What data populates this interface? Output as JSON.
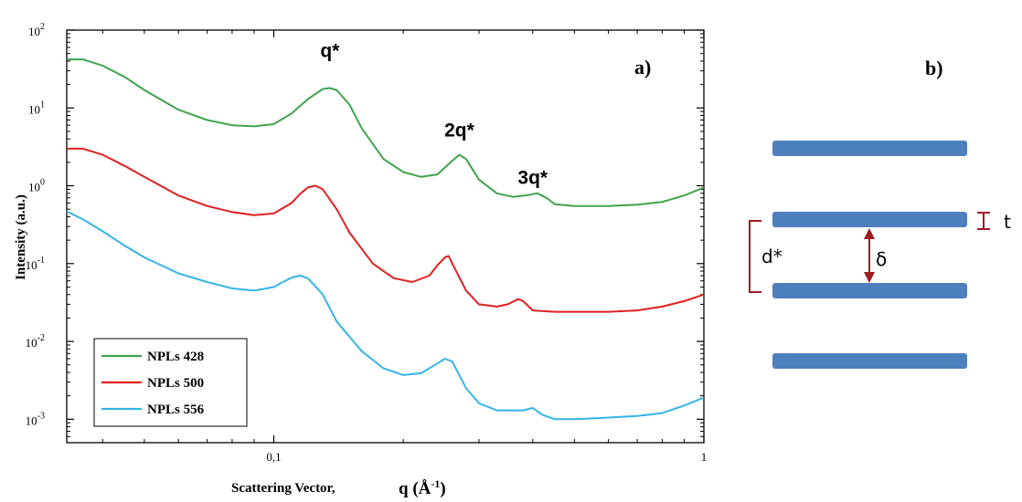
{
  "chart_data": {
    "type": "line",
    "panel_label": "a)",
    "xlabel_main": "Scattering Vector,",
    "xlabel_q": "q (Å",
    "xlabel_exp": "-1",
    "xlabel_close": ")",
    "ylabel": "Intensity (a.u.)",
    "x_scale": "log",
    "y_scale": "log",
    "xlim": [
      0.033,
      1.0
    ],
    "ylim": [
      0.0005,
      100
    ],
    "x_ticks": [
      {
        "value": 0.1,
        "label": "0,1"
      },
      {
        "value": 1,
        "label": "1"
      }
    ],
    "y_ticks": [
      {
        "value": 100,
        "base": "10",
        "exp": "2"
      },
      {
        "value": 10,
        "base": "10",
        "exp": "1"
      },
      {
        "value": 1,
        "base": "10",
        "exp": "0"
      },
      {
        "value": 0.1,
        "base": "10",
        "exp": "-1"
      },
      {
        "value": 0.01,
        "base": "10",
        "exp": "-2"
      },
      {
        "value": 0.001,
        "base": "10",
        "exp": "-3"
      }
    ],
    "legend_position": "bottom-left",
    "annotations": [
      {
        "text": "q*",
        "x": 0.135,
        "y": 45
      },
      {
        "text": "2q*",
        "x": 0.27,
        "y": 4.3
      },
      {
        "text": "3q*",
        "x": 0.4,
        "y": 1.05
      }
    ],
    "series": [
      {
        "name": "NPLs 428",
        "color": "#3fa34d",
        "x": [
          0.033,
          0.036,
          0.04,
          0.045,
          0.05,
          0.06,
          0.07,
          0.08,
          0.09,
          0.1,
          0.11,
          0.12,
          0.13,
          0.135,
          0.14,
          0.15,
          0.16,
          0.18,
          0.2,
          0.22,
          0.24,
          0.26,
          0.27,
          0.28,
          0.3,
          0.33,
          0.36,
          0.39,
          0.41,
          0.43,
          0.45,
          0.5,
          0.6,
          0.7,
          0.8,
          0.9,
          1.0
        ],
        "y": [
          42,
          42,
          35,
          25,
          17,
          9.5,
          7,
          6,
          5.8,
          6.2,
          8.5,
          13,
          17.5,
          18,
          17,
          11,
          5.5,
          2.2,
          1.5,
          1.3,
          1.4,
          2.1,
          2.5,
          2.2,
          1.2,
          0.8,
          0.72,
          0.76,
          0.8,
          0.7,
          0.58,
          0.55,
          0.55,
          0.57,
          0.62,
          0.75,
          0.95
        ]
      },
      {
        "name": "NPLs 500",
        "color": "#e02020",
        "x": [
          0.033,
          0.036,
          0.04,
          0.045,
          0.05,
          0.06,
          0.07,
          0.08,
          0.09,
          0.1,
          0.11,
          0.115,
          0.12,
          0.125,
          0.13,
          0.14,
          0.15,
          0.17,
          0.19,
          0.21,
          0.23,
          0.24,
          0.25,
          0.255,
          0.26,
          0.28,
          0.3,
          0.33,
          0.35,
          0.37,
          0.38,
          0.4,
          0.45,
          0.5,
          0.6,
          0.7,
          0.8,
          0.9,
          1.0
        ],
        "y": [
          3.0,
          3.0,
          2.5,
          1.8,
          1.3,
          0.75,
          0.55,
          0.46,
          0.42,
          0.44,
          0.6,
          0.78,
          0.95,
          1.0,
          0.9,
          0.5,
          0.25,
          0.1,
          0.065,
          0.058,
          0.07,
          0.095,
          0.12,
          0.125,
          0.1,
          0.045,
          0.03,
          0.028,
          0.03,
          0.035,
          0.033,
          0.025,
          0.024,
          0.024,
          0.024,
          0.025,
          0.028,
          0.033,
          0.04
        ]
      },
      {
        "name": "NPLs 556",
        "color": "#35b4e6",
        "x": [
          0.033,
          0.036,
          0.04,
          0.045,
          0.05,
          0.06,
          0.07,
          0.08,
          0.09,
          0.1,
          0.105,
          0.11,
          0.115,
          0.12,
          0.13,
          0.14,
          0.16,
          0.18,
          0.2,
          0.22,
          0.24,
          0.25,
          0.26,
          0.28,
          0.3,
          0.33,
          0.36,
          0.38,
          0.4,
          0.42,
          0.45,
          0.5,
          0.6,
          0.7,
          0.8,
          0.9,
          1.0
        ],
        "y": [
          0.47,
          0.37,
          0.26,
          0.17,
          0.12,
          0.075,
          0.058,
          0.048,
          0.045,
          0.05,
          0.058,
          0.066,
          0.07,
          0.065,
          0.04,
          0.018,
          0.0075,
          0.0045,
          0.0037,
          0.0039,
          0.0052,
          0.006,
          0.0055,
          0.0025,
          0.0016,
          0.0013,
          0.0013,
          0.0013,
          0.0014,
          0.00115,
          0.001,
          0.001,
          0.00105,
          0.0011,
          0.0012,
          0.0015,
          0.0019
        ]
      }
    ]
  },
  "diagram": {
    "panel_label": "b)",
    "d_label": "d*",
    "delta_label": "δ",
    "t_label": "t",
    "layer_color": "#4e80bd",
    "bracket_color": "#a01a22"
  }
}
